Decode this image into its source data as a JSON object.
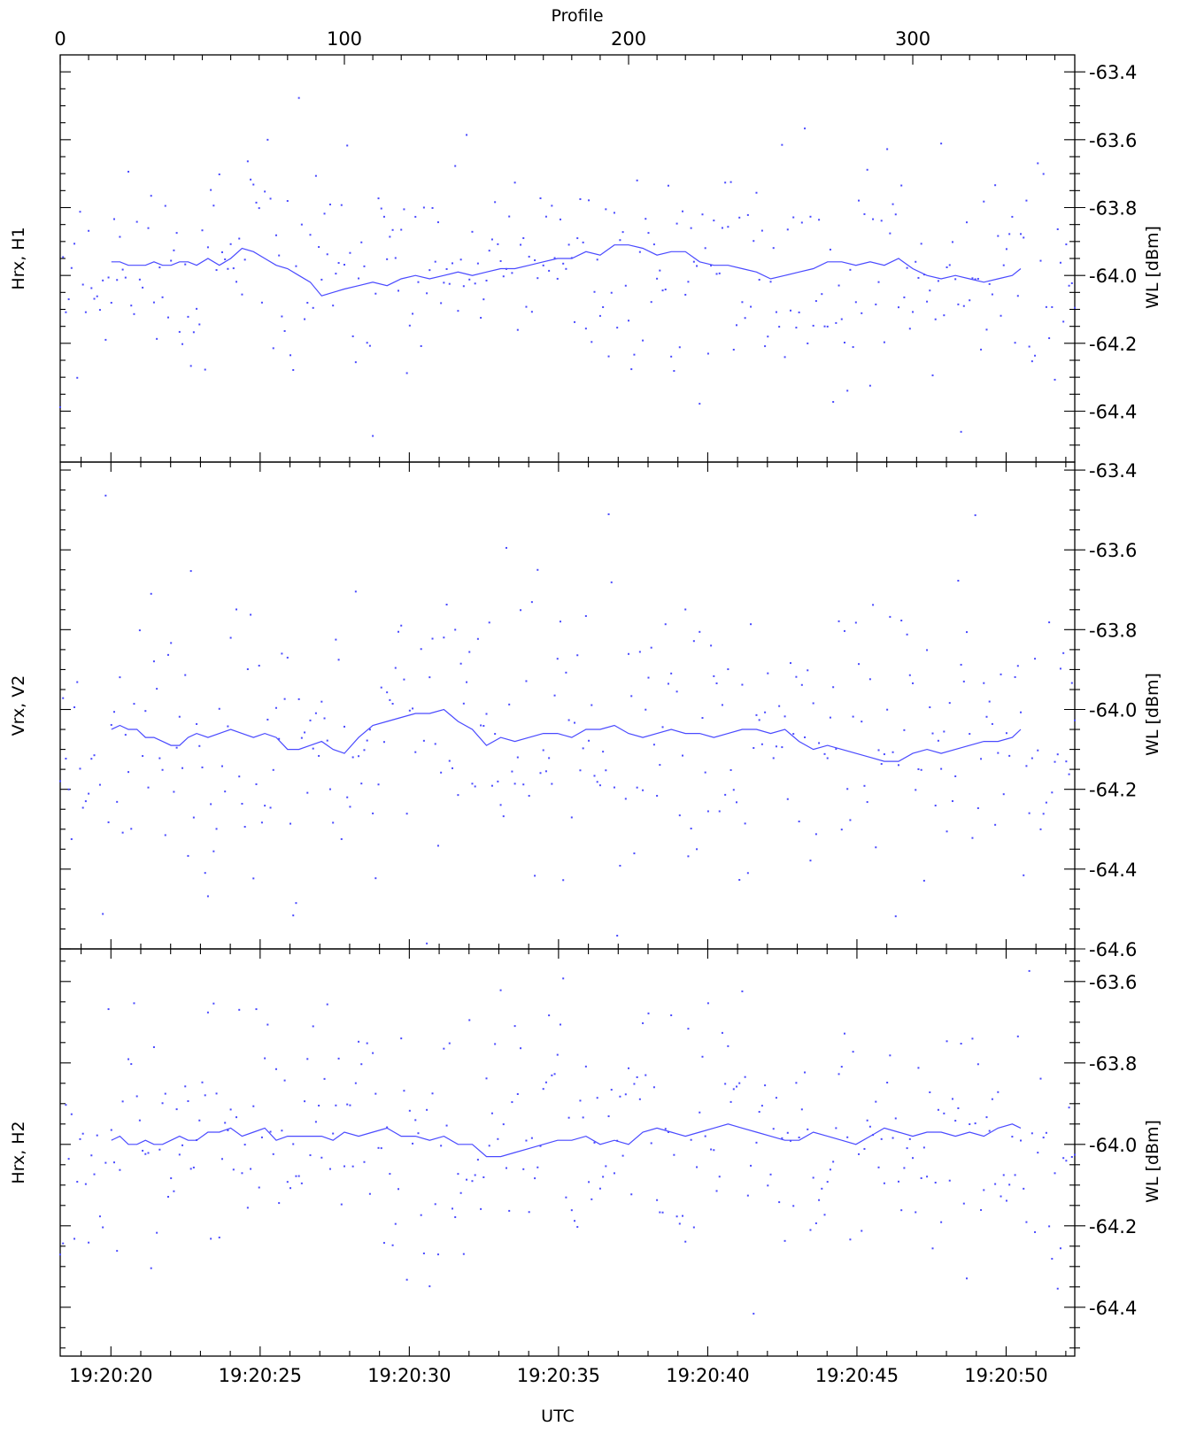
{
  "chart_data": {
    "type": "scatter",
    "top_axis": {
      "label": "Profile",
      "ticks": [
        0,
        100,
        200,
        300
      ],
      "range": [
        0,
        357
      ]
    },
    "bottom_axis": {
      "label": "UTC",
      "range_seconds": [
        1158.3,
        1192.3
      ],
      "ticks": [
        {
          "s": 1160,
          "label": "19:20:20"
        },
        {
          "s": 1165,
          "label": "19:20:25"
        },
        {
          "s": 1170,
          "label": "19:20:30"
        },
        {
          "s": 1175,
          "label": "19:20:35"
        },
        {
          "s": 1180,
          "label": "19:20:40"
        },
        {
          "s": 1185,
          "label": "19:20:45"
        },
        {
          "s": 1190,
          "label": "19:20:50"
        }
      ]
    },
    "grid": false,
    "series_color": "#4a4aff",
    "panels": [
      {
        "id": "H1",
        "left_label": "Hrx, H1",
        "right_label": "WL [dBm]",
        "ylim": [
          -63.35,
          -64.55
        ],
        "ytick_labels": [
          "-63.4",
          "-63.6",
          "-63.8",
          "-64.0",
          "-64.2",
          "-64.4"
        ],
        "ytick_values": [
          -63.4,
          -63.6,
          -63.8,
          -64.0,
          -64.2,
          -64.4
        ],
        "mean": -63.99,
        "spread": 0.15,
        "outlier_chance": 0.1,
        "seed": 11,
        "line_x": [
          18,
          21,
          24,
          27,
          30,
          33,
          36,
          39,
          42,
          45,
          48,
          52,
          56,
          60,
          64,
          68,
          72,
          76,
          80,
          84,
          88,
          92,
          96,
          100,
          105,
          110,
          115,
          120,
          125,
          130,
          135,
          140,
          145,
          150,
          155,
          160,
          165,
          170,
          175,
          180,
          185,
          190,
          195,
          200,
          205,
          210,
          215,
          220,
          225,
          230,
          235,
          240,
          245,
          250,
          255,
          260,
          265,
          270,
          275,
          280,
          285,
          290,
          295,
          300,
          305,
          310,
          315,
          320,
          325,
          330,
          335,
          338
        ],
        "line_y": [
          -63.96,
          -63.96,
          -63.97,
          -63.97,
          -63.97,
          -63.96,
          -63.97,
          -63.97,
          -63.96,
          -63.96,
          -63.97,
          -63.95,
          -63.97,
          -63.95,
          -63.92,
          -63.93,
          -63.95,
          -63.97,
          -63.98,
          -64.0,
          -64.02,
          -64.06,
          -64.05,
          -64.04,
          -64.03,
          -64.02,
          -64.03,
          -64.01,
          -64.0,
          -64.01,
          -64.0,
          -63.99,
          -64.0,
          -63.99,
          -63.98,
          -63.98,
          -63.97,
          -63.96,
          -63.95,
          -63.95,
          -63.93,
          -63.94,
          -63.91,
          -63.91,
          -63.92,
          -63.94,
          -63.93,
          -63.93,
          -63.96,
          -63.97,
          -63.97,
          -63.98,
          -63.99,
          -64.01,
          -64.0,
          -63.99,
          -63.98,
          -63.96,
          -63.96,
          -63.97,
          -63.96,
          -63.97,
          -63.95,
          -63.98,
          -64.0,
          -64.01,
          -64.0,
          -64.01,
          -64.02,
          -64.01,
          -64.0,
          -63.98
        ]
      },
      {
        "id": "V2",
        "left_label": "Vrx, V2",
        "right_label": "WL [dBm]",
        "ylim": [
          -63.38,
          -64.6
        ],
        "ytick_labels": [
          "-63.4",
          "-63.6",
          "-63.8",
          "-64.0",
          "-64.2",
          "-64.4",
          "-64.6"
        ],
        "ytick_values": [
          -63.4,
          -63.6,
          -63.8,
          -64.0,
          -64.2,
          -64.4,
          -64.6
        ],
        "mean": -64.07,
        "spread": 0.17,
        "outlier_chance": 0.12,
        "seed": 23,
        "line_x": [
          18,
          21,
          24,
          27,
          30,
          33,
          36,
          39,
          42,
          45,
          48,
          52,
          56,
          60,
          64,
          68,
          72,
          76,
          80,
          84,
          88,
          92,
          96,
          100,
          105,
          110,
          115,
          120,
          125,
          130,
          135,
          140,
          145,
          150,
          155,
          160,
          165,
          170,
          175,
          180,
          185,
          190,
          195,
          200,
          205,
          210,
          215,
          220,
          225,
          230,
          235,
          240,
          245,
          250,
          255,
          260,
          265,
          270,
          275,
          280,
          285,
          290,
          295,
          300,
          305,
          310,
          315,
          320,
          325,
          330,
          335,
          338
        ],
        "line_y": [
          -64.05,
          -64.04,
          -64.05,
          -64.05,
          -64.07,
          -64.07,
          -64.08,
          -64.09,
          -64.09,
          -64.07,
          -64.06,
          -64.07,
          -64.06,
          -64.05,
          -64.06,
          -64.07,
          -64.06,
          -64.07,
          -64.1,
          -64.1,
          -64.09,
          -64.08,
          -64.1,
          -64.11,
          -64.07,
          -64.04,
          -64.03,
          -64.02,
          -64.01,
          -64.01,
          -64.0,
          -64.03,
          -64.05,
          -64.09,
          -64.07,
          -64.08,
          -64.07,
          -64.06,
          -64.06,
          -64.07,
          -64.05,
          -64.05,
          -64.04,
          -64.06,
          -64.07,
          -64.06,
          -64.05,
          -64.06,
          -64.06,
          -64.07,
          -64.06,
          -64.05,
          -64.05,
          -64.06,
          -64.05,
          -64.08,
          -64.1,
          -64.09,
          -64.1,
          -64.11,
          -64.12,
          -64.13,
          -64.13,
          -64.11,
          -64.1,
          -64.11,
          -64.1,
          -64.09,
          -64.08,
          -64.08,
          -64.07,
          -64.05
        ]
      },
      {
        "id": "H2",
        "left_label": "Hrx, H2",
        "right_label": "WL [dBm]",
        "ylim": [
          -63.52,
          -64.52
        ],
        "ytick_labels": [
          "-63.6",
          "-63.8",
          "-64.0",
          "-64.2",
          "-64.4"
        ],
        "ytick_values": [
          -63.6,
          -63.8,
          -64.0,
          -64.2,
          -64.4
        ],
        "mean": -63.98,
        "spread": 0.15,
        "outlier_chance": 0.1,
        "seed": 37,
        "line_x": [
          18,
          21,
          24,
          27,
          30,
          33,
          36,
          39,
          42,
          45,
          48,
          52,
          56,
          60,
          64,
          68,
          72,
          76,
          80,
          84,
          88,
          92,
          96,
          100,
          105,
          110,
          115,
          120,
          125,
          130,
          135,
          140,
          145,
          150,
          155,
          160,
          165,
          170,
          175,
          180,
          185,
          190,
          195,
          200,
          205,
          210,
          215,
          220,
          225,
          230,
          235,
          240,
          245,
          250,
          255,
          260,
          265,
          270,
          275,
          280,
          285,
          290,
          295,
          300,
          305,
          310,
          315,
          320,
          325,
          330,
          335,
          338
        ],
        "line_y": [
          -63.99,
          -63.98,
          -64.0,
          -64.0,
          -63.99,
          -64.0,
          -64.0,
          -63.99,
          -63.98,
          -63.99,
          -63.99,
          -63.97,
          -63.97,
          -63.96,
          -63.98,
          -63.97,
          -63.96,
          -63.99,
          -63.98,
          -63.98,
          -63.98,
          -63.98,
          -63.99,
          -63.97,
          -63.98,
          -63.97,
          -63.96,
          -63.98,
          -63.98,
          -63.99,
          -63.98,
          -64.0,
          -64.0,
          -64.03,
          -64.03,
          -64.02,
          -64.01,
          -64.0,
          -63.99,
          -63.99,
          -63.98,
          -64.0,
          -63.99,
          -64.0,
          -63.97,
          -63.96,
          -63.97,
          -63.98,
          -63.97,
          -63.96,
          -63.95,
          -63.96,
          -63.97,
          -63.98,
          -63.99,
          -63.99,
          -63.97,
          -63.98,
          -63.99,
          -64.0,
          -63.98,
          -63.96,
          -63.97,
          -63.98,
          -63.97,
          -63.97,
          -63.98,
          -63.97,
          -63.98,
          -63.96,
          -63.95,
          -63.96
        ]
      }
    ]
  }
}
